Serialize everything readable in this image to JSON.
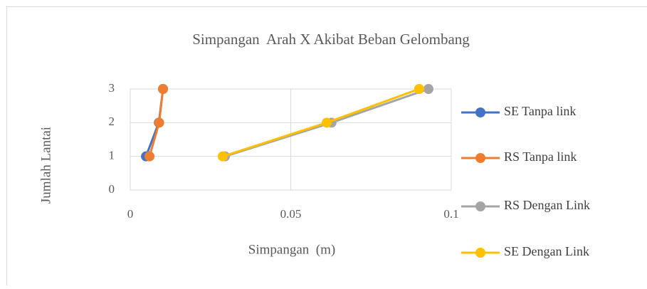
{
  "chart_data": {
    "type": "line",
    "title": "Simpangan  Arah X Akibat Beban Gelombang",
    "xlabel": "Simpangan  (m)",
    "ylabel": "Jumlah Lantai",
    "xlim": [
      0,
      0.1
    ],
    "xticks": [
      0,
      0.05,
      0.1
    ],
    "ylim": [
      0,
      3
    ],
    "yticks": [
      0,
      1,
      2,
      3
    ],
    "grid": true,
    "legend": "right",
    "series": [
      {
        "name": "SE Tanpa link",
        "color": "#4472c4",
        "x": [
          0.0049,
          0.0089,
          0.0102
        ],
        "values": [
          1,
          2,
          3
        ]
      },
      {
        "name": "RS Tanpa link",
        "color": "#ed7d31",
        "x": [
          0.006,
          0.009,
          0.0102
        ],
        "values": [
          1,
          2,
          3
        ]
      },
      {
        "name": "RS Dengan Link",
        "color": "#a5a5a5",
        "x": [
          0.0295,
          0.0627,
          0.0929
        ],
        "values": [
          1,
          2,
          3
        ]
      },
      {
        "name": "SE Dengan Link",
        "color": "#ffc000",
        "x": [
          0.0288,
          0.0612,
          0.09
        ],
        "values": [
          1,
          2,
          3
        ]
      }
    ]
  }
}
